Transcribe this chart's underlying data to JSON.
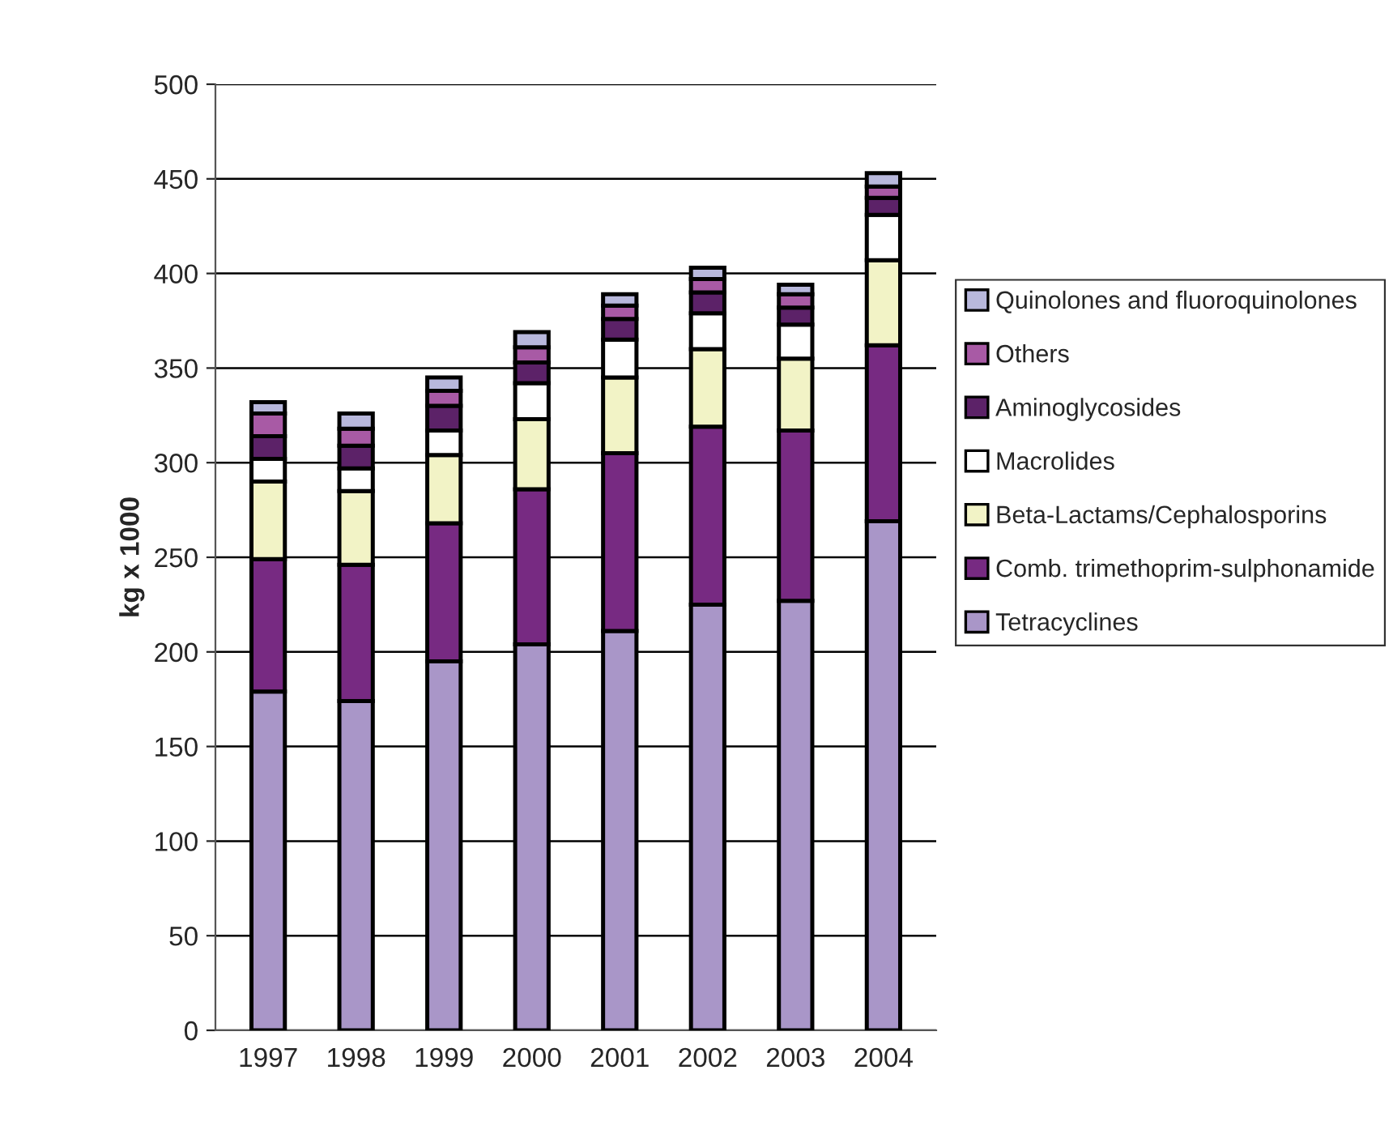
{
  "chart_data": {
    "type": "bar",
    "stacked": true,
    "ylabel": "kg x 1000",
    "categories": [
      "1997",
      "1998",
      "1999",
      "2000",
      "2001",
      "2002",
      "2003",
      "2004"
    ],
    "series": [
      {
        "name": "Tetracyclines",
        "color": "#a996c8",
        "values": [
          179,
          174,
          195,
          204,
          211,
          225,
          227,
          269
        ]
      },
      {
        "name": "Comb. trimethoprim-sulphonamide",
        "color": "#772a82",
        "values": [
          70,
          72,
          73,
          82,
          94,
          94,
          90,
          93
        ]
      },
      {
        "name": "Beta-Lactams/Cephalosporins",
        "color": "#f2f3c6",
        "values": [
          41,
          39,
          36,
          37,
          40,
          41,
          38,
          45
        ]
      },
      {
        "name": "Macrolides",
        "color": "#ffffff",
        "values": [
          12,
          12,
          13,
          19,
          20,
          19,
          18,
          24
        ]
      },
      {
        "name": "Aminoglycosides",
        "color": "#5c2268",
        "values": [
          12,
          12,
          13,
          11,
          11,
          11,
          9,
          9
        ]
      },
      {
        "name": "Others",
        "color": "#a85aa5",
        "values": [
          12,
          9,
          8,
          8,
          7,
          7,
          7,
          6
        ]
      },
      {
        "name": "Quinolones and fluoroquinolones",
        "color": "#b8b8dc",
        "values": [
          6,
          8,
          7,
          8,
          6,
          6,
          5,
          7
        ]
      }
    ],
    "ylim": [
      0,
      500
    ],
    "yticks": [
      0,
      50,
      100,
      150,
      200,
      250,
      300,
      350,
      400,
      450,
      500
    ],
    "grid": "y",
    "legend": "right"
  }
}
